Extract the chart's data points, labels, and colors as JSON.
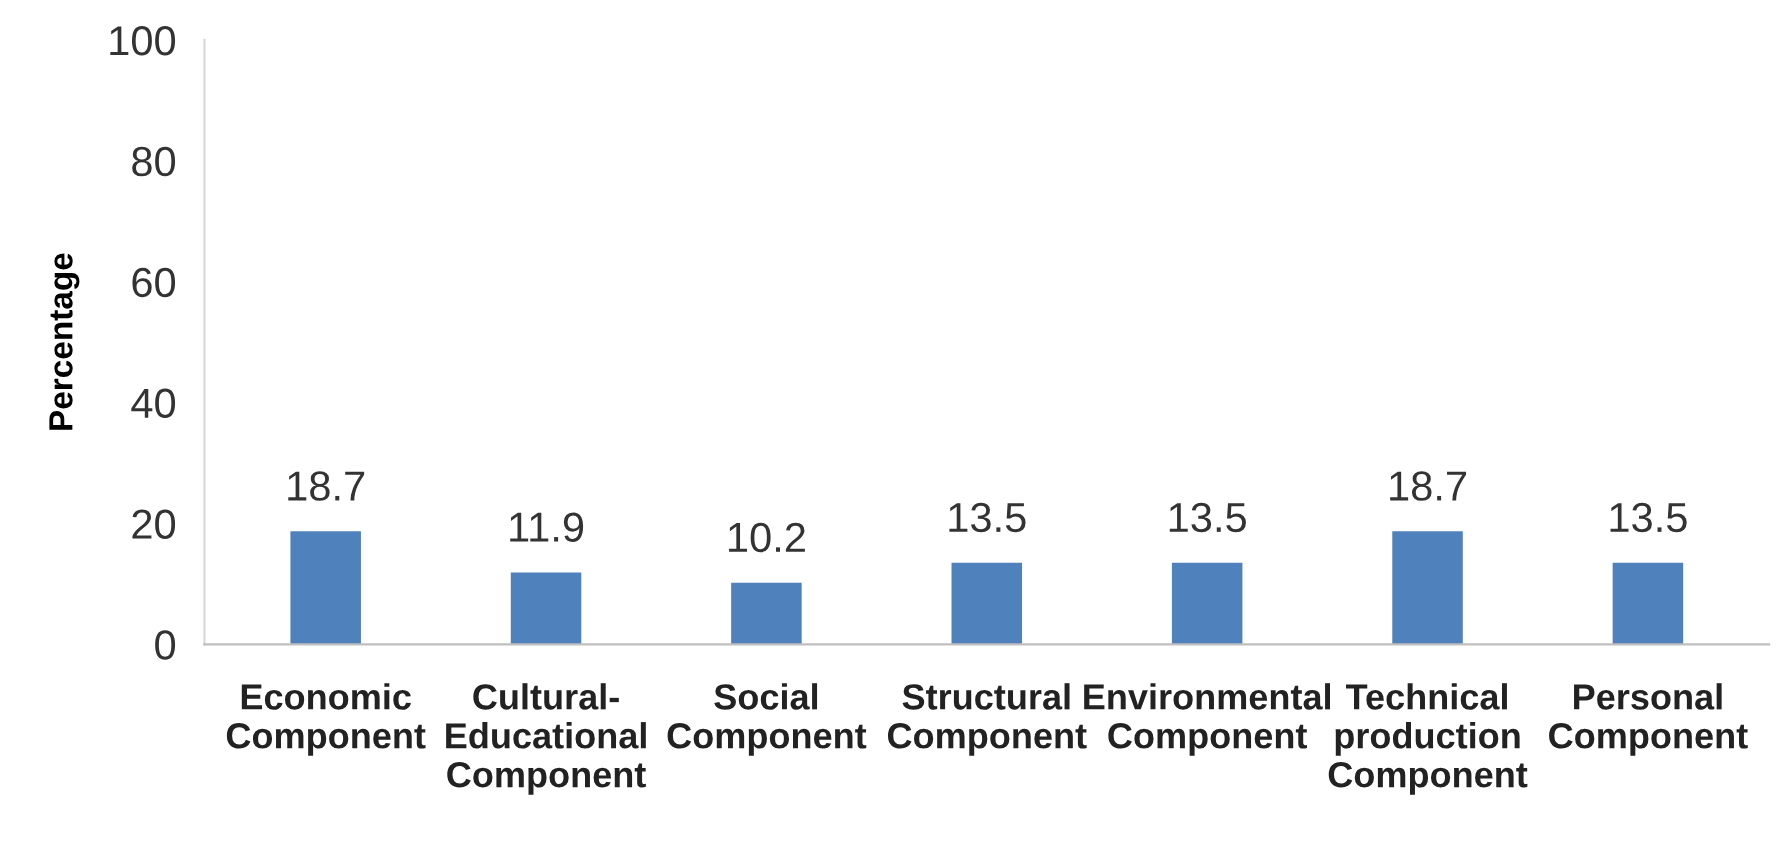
{
  "chart_data": {
    "type": "bar",
    "ylabel": "Percentage",
    "categories": [
      "Economic\nComponent",
      "Cultural-\nEducational\nComponent",
      "Social\nComponent",
      "Structural\nComponent",
      "Environmental\nComponent",
      "Technical\nproduction\nComponent",
      "Personal\nComponent"
    ],
    "values": [
      18.7,
      11.9,
      10.2,
      13.5,
      13.5,
      18.7,
      13.5
    ],
    "color": "#4f81bd",
    "ylim": [
      0,
      100
    ],
    "yticks": [
      0,
      20,
      40,
      60,
      80,
      100
    ],
    "grid": false,
    "data_labels": true
  }
}
